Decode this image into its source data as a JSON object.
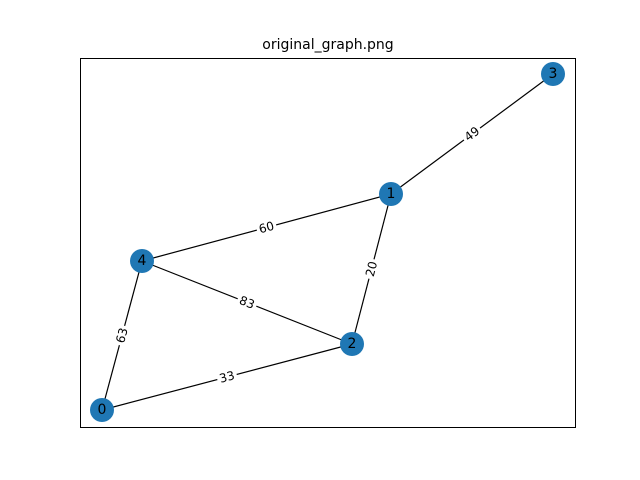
{
  "title": "original_graph.png",
  "colors": {
    "node": "#1f77b4",
    "edge": "#000000",
    "background": "#ffffff"
  },
  "graph": {
    "nodes": [
      {
        "id": "0",
        "label": "0"
      },
      {
        "id": "1",
        "label": "1"
      },
      {
        "id": "2",
        "label": "2"
      },
      {
        "id": "3",
        "label": "3"
      },
      {
        "id": "4",
        "label": "4"
      }
    ],
    "edges": [
      {
        "source": "1",
        "target": "3",
        "weight": "49"
      },
      {
        "source": "4",
        "target": "1",
        "weight": "60"
      },
      {
        "source": "1",
        "target": "2",
        "weight": "20"
      },
      {
        "source": "4",
        "target": "2",
        "weight": "83"
      },
      {
        "source": "0",
        "target": "4",
        "weight": "63"
      },
      {
        "source": "0",
        "target": "2",
        "weight": "33"
      }
    ]
  }
}
